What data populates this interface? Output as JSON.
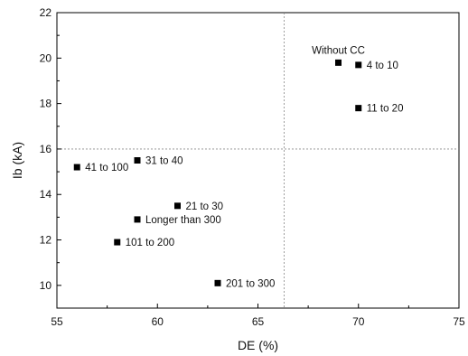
{
  "chart_data": {
    "type": "scatter",
    "xlabel": "DE (%)",
    "ylabel": "Ib (kA)",
    "xlim": [
      55,
      75
    ],
    "ylim": [
      9,
      22
    ],
    "xticks": [
      55,
      60,
      65,
      70,
      75
    ],
    "yticks": [
      10,
      12,
      14,
      16,
      18,
      20,
      22
    ],
    "reference_lines": {
      "x": 66.3,
      "y": 16
    },
    "grid": false,
    "marker": "square",
    "marker_color": "#000000",
    "points": [
      {
        "label": "Without CC",
        "x": 69.0,
        "y": 19.8,
        "label_pos": "above"
      },
      {
        "label": "4 to 10",
        "x": 70.0,
        "y": 19.7,
        "label_pos": "right"
      },
      {
        "label": "11 to 20",
        "x": 70.0,
        "y": 17.8,
        "label_pos": "right"
      },
      {
        "label": "31 to 40",
        "x": 59.0,
        "y": 15.5,
        "label_pos": "right"
      },
      {
        "label": "41 to 100",
        "x": 56.0,
        "y": 15.2,
        "label_pos": "right"
      },
      {
        "label": "21 to 30",
        "x": 61.0,
        "y": 13.5,
        "label_pos": "right"
      },
      {
        "label": "Longer than 300",
        "x": 59.0,
        "y": 12.9,
        "label_pos": "right"
      },
      {
        "label": "101 to 200",
        "x": 58.0,
        "y": 11.9,
        "label_pos": "right"
      },
      {
        "label": "201 to 300",
        "x": 63.0,
        "y": 10.1,
        "label_pos": "right"
      }
    ]
  }
}
